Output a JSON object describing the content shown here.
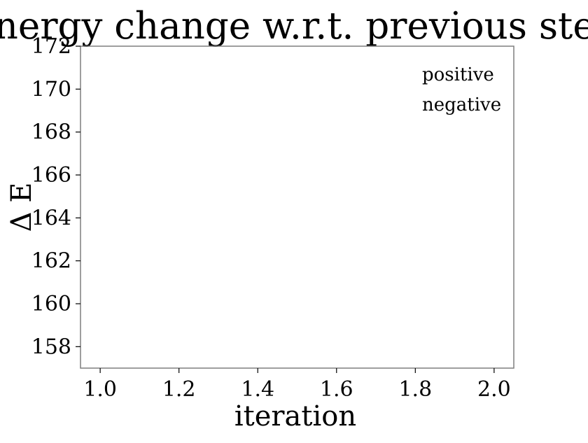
{
  "chart_data": {
    "type": "line",
    "title": "energy change w.r.t. previous step",
    "xlabel": "iteration",
    "ylabel": "Δ E",
    "xlim": [
      0.95,
      2.05
    ],
    "ylim": [
      157,
      172
    ],
    "xticks": [
      1.0,
      1.2,
      1.4,
      1.6,
      1.8,
      2.0
    ],
    "xtick_labels": [
      "1.0",
      "1.2",
      "1.4",
      "1.6",
      "1.8",
      "2.0"
    ],
    "yticks": [
      158,
      160,
      162,
      164,
      166,
      168,
      170,
      172
    ],
    "ytick_labels": [
      "158",
      "160",
      "162",
      "164",
      "166",
      "168",
      "170",
      "172"
    ],
    "grid": false,
    "legend_position": "top-right",
    "series": [
      {
        "name": "positive",
        "x": [],
        "y": []
      },
      {
        "name": "negative",
        "x": [],
        "y": []
      }
    ],
    "colors": {
      "axes_frame": "#7f7f7f",
      "text": "#000000",
      "background": "#ffffff"
    }
  }
}
